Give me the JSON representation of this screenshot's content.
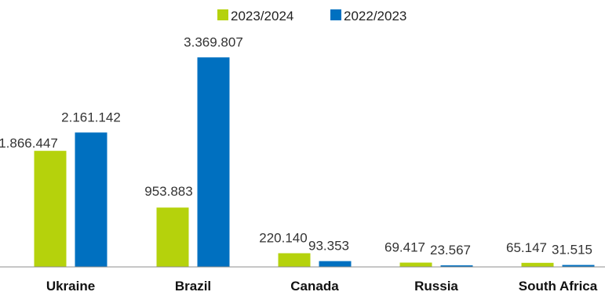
{
  "chart_data": {
    "type": "bar",
    "title": "",
    "xlabel": "",
    "ylabel": "",
    "categories": [
      "Ukraine",
      "Brazil",
      "Canada",
      "Russia",
      "South Africa"
    ],
    "series": [
      {
        "name": "2023/2024",
        "color": "#b5d20c",
        "values": [
          1866447,
          953883,
          220140,
          69417,
          65147
        ],
        "labels": [
          "1.866.447",
          "953.883",
          "220.140",
          "69.417",
          "65.147"
        ]
      },
      {
        "name": "2022/2023",
        "color": "#0070c0",
        "values": [
          2161142,
          3369807,
          93353,
          23567,
          31515
        ],
        "labels": [
          "2.161.142",
          "3.369.807",
          "93.353",
          "23.567",
          "31.515"
        ]
      }
    ],
    "ylim": [
      0,
      3600000
    ],
    "grid": false,
    "legend": "top-center",
    "axis_color": "#8c8c8c"
  }
}
